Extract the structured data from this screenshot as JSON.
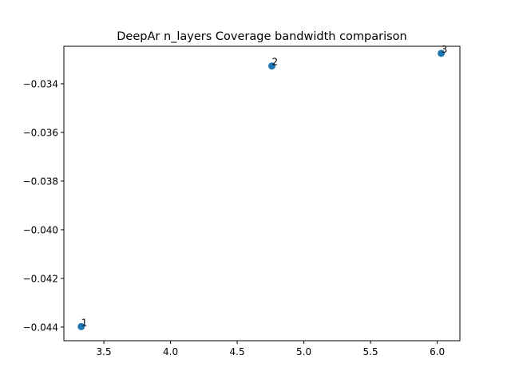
{
  "chart_data": {
    "type": "scatter",
    "title": "DeepAr n_layers Coverage bandwidth comparison",
    "xlabel": "",
    "ylabel": "",
    "xlim": [
      3.2,
      6.17
    ],
    "ylim": [
      -0.04456,
      -0.03246
    ],
    "xticks": [
      3.5,
      4.0,
      4.5,
      5.0,
      5.5,
      6.0
    ],
    "xtick_labels": [
      "3.5",
      "4.0",
      "4.5",
      "5.0",
      "5.5",
      "6.0"
    ],
    "yticks": [
      -0.034,
      -0.036,
      -0.038,
      -0.04,
      -0.042,
      -0.044
    ],
    "ytick_labels": [
      "−0.034",
      "−0.036",
      "−0.038",
      "−0.040",
      "−0.042",
      "−0.044"
    ],
    "grid": false,
    "point_color": "#1f77b4",
    "points": [
      {
        "x": 3.33,
        "y": -0.04398,
        "label": "1"
      },
      {
        "x": 4.76,
        "y": -0.03327,
        "label": "2"
      },
      {
        "x": 6.03,
        "y": -0.03275,
        "label": "3"
      }
    ]
  }
}
